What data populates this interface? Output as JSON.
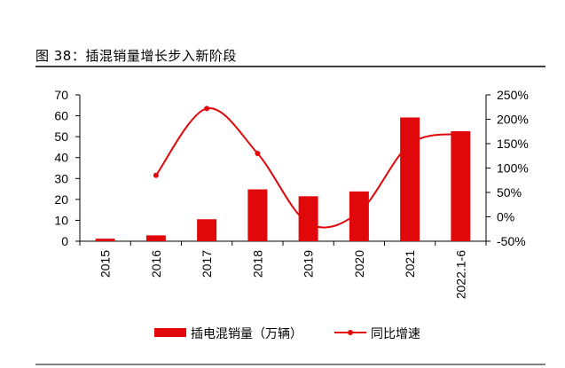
{
  "figure": {
    "title": "图 38：插混销量增长步入新阶段"
  },
  "colors": {
    "bar": "#e0080b",
    "line": "#e0080b",
    "rule": "#000000"
  },
  "chart_data": {
    "type": "bar",
    "categories": [
      "2015",
      "2016",
      "2017",
      "2018",
      "2019",
      "2020",
      "2021",
      "2022.1-6"
    ],
    "series": [
      {
        "name": "插电混销量（万辆）",
        "kind": "bar",
        "axis": "left",
        "values": [
          1.2,
          2.8,
          10.5,
          24.8,
          21.5,
          23.8,
          59.2,
          52.6
        ]
      },
      {
        "name": "同比增速",
        "kind": "line",
        "axis": "right",
        "values": [
          null,
          0.85,
          2.22,
          1.3,
          -0.13,
          0.1,
          1.49,
          1.7
        ]
      }
    ],
    "y_left": {
      "min": 0,
      "max": 70,
      "ticks": [
        "0",
        "10",
        "20",
        "30",
        "40",
        "50",
        "60",
        "70"
      ]
    },
    "y_right": {
      "min": -0.5,
      "max": 2.5,
      "ticks": [
        "-50%",
        "0%",
        "50%",
        "100%",
        "150%",
        "200%",
        "250%"
      ]
    },
    "legend": {
      "position": "bottom",
      "bar_label": "插电混销量（万辆）",
      "line_label": "同比增速"
    }
  }
}
